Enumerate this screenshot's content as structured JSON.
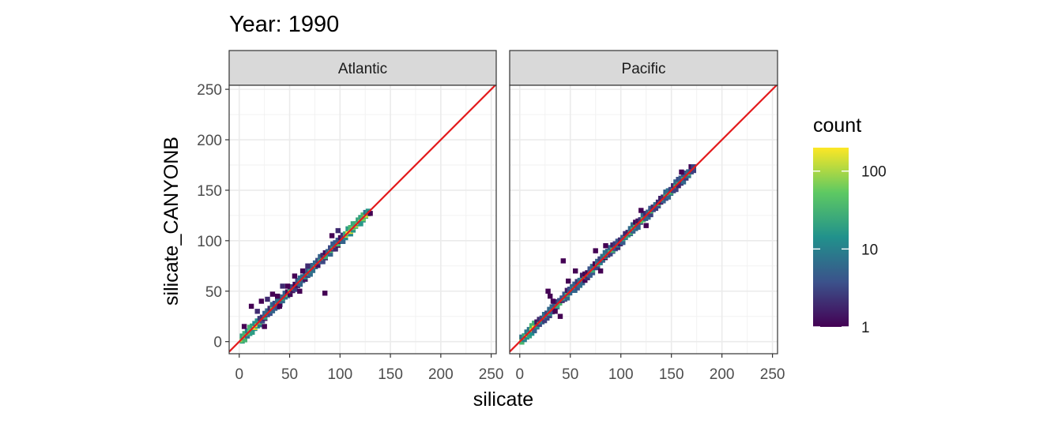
{
  "chart_data": {
    "type": "heatmap",
    "subtype": "2d-bin-count",
    "title": "Year: 1990",
    "xlabel": "silicate",
    "ylabel": "silicate_CANYONB",
    "xlim": [
      -10,
      255
    ],
    "ylim": [
      -12,
      254
    ],
    "xticks": [
      0,
      50,
      100,
      150,
      200,
      250
    ],
    "yticks": [
      0,
      50,
      100,
      150,
      200,
      250
    ],
    "grid": true,
    "reference_line": {
      "slope": 1,
      "intercept": 0,
      "color": "#e31a1c"
    },
    "legend": {
      "title": "count",
      "position": "right",
      "scale": "log",
      "range": [
        1,
        200
      ],
      "ticks": [
        {
          "value": 1,
          "label": "1"
        },
        {
          "value": 10,
          "label": "10"
        },
        {
          "value": 100,
          "label": "100"
        }
      ],
      "colors": [
        "#440154",
        "#3b528b",
        "#21918c",
        "#5ec962",
        "#fde725"
      ]
    },
    "bin_width": 5,
    "panels": [
      {
        "label": "Atlantic",
        "diag_range": [
          3,
          128
        ],
        "high_count_ranges": [
          [
            3,
            20
          ],
          [
            105,
            128
          ]
        ],
        "outliers": [
          {
            "x": 5,
            "y": 15,
            "count": 1
          },
          {
            "x": 12,
            "y": 35,
            "count": 1
          },
          {
            "x": 18,
            "y": 30,
            "count": 2
          },
          {
            "x": 22,
            "y": 40,
            "count": 1
          },
          {
            "x": 28,
            "y": 42,
            "count": 2
          },
          {
            "x": 33,
            "y": 47,
            "count": 1
          },
          {
            "x": 38,
            "y": 45,
            "count": 1
          },
          {
            "x": 43,
            "y": 55,
            "count": 2
          },
          {
            "x": 48,
            "y": 55,
            "count": 1
          },
          {
            "x": 55,
            "y": 65,
            "count": 1
          },
          {
            "x": 63,
            "y": 70,
            "count": 1
          },
          {
            "x": 68,
            "y": 75,
            "count": 2
          },
          {
            "x": 85,
            "y": 48,
            "count": 1
          },
          {
            "x": 92,
            "y": 105,
            "count": 1
          },
          {
            "x": 98,
            "y": 110,
            "count": 2
          },
          {
            "x": 25,
            "y": 15,
            "count": 1
          },
          {
            "x": 40,
            "y": 35,
            "count": 1
          },
          {
            "x": 60,
            "y": 50,
            "count": 1
          },
          {
            "x": 130,
            "y": 127,
            "count": 1
          }
        ]
      },
      {
        "label": "Pacific",
        "diag_range": [
          2,
          172
        ],
        "high_count_ranges": [
          [
            2,
            15
          ]
        ],
        "outliers": [
          {
            "x": 43,
            "y": 80,
            "count": 1
          },
          {
            "x": 28,
            "y": 50,
            "count": 1
          },
          {
            "x": 30,
            "y": 45,
            "count": 1
          },
          {
            "x": 33,
            "y": 40,
            "count": 1
          },
          {
            "x": 35,
            "y": 30,
            "count": 1
          },
          {
            "x": 48,
            "y": 60,
            "count": 1
          },
          {
            "x": 55,
            "y": 70,
            "count": 1
          },
          {
            "x": 75,
            "y": 90,
            "count": 1
          },
          {
            "x": 80,
            "y": 70,
            "count": 1
          },
          {
            "x": 120,
            "y": 130,
            "count": 1
          },
          {
            "x": 125,
            "y": 115,
            "count": 1
          },
          {
            "x": 160,
            "y": 168,
            "count": 1
          },
          {
            "x": 40,
            "y": 25,
            "count": 1
          },
          {
            "x": 85,
            "y": 95,
            "count": 1
          }
        ]
      }
    ]
  }
}
